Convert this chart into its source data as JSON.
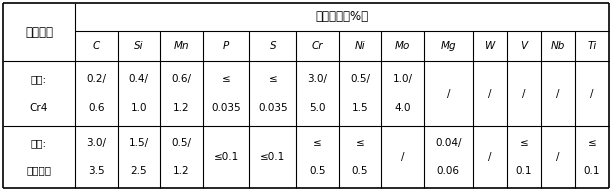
{
  "title": "化学成分（%）",
  "col1_header": "材质配对",
  "element_headers": [
    "C",
    "Si",
    "Mn",
    "P",
    "S",
    "Cr",
    "Ni",
    "Mo",
    "Mg",
    "W",
    "V",
    "Nb",
    "Ti"
  ],
  "row1_label_top": "外层:",
  "row1_label_bot": "Cr4",
  "row1_data_top": [
    "0.2/",
    "0.4/",
    "0.6/",
    "≤",
    "≤",
    "3.0/",
    "0.5/",
    "1.0/",
    "/",
    "/",
    "/",
    "/",
    "/"
  ],
  "row1_data_bot": [
    "0.6",
    "1.0",
    "1.2",
    "0.035",
    "0.035",
    "5.0",
    "1.5",
    "4.0",
    "",
    "",
    "",
    "",
    ""
  ],
  "row2_label_top": "内层:",
  "row2_label_bot": "球墨铸铁",
  "row2_data_top": [
    "3.0/",
    "1.5/",
    "0.5/",
    "≤0.1",
    "≤0.1",
    "≤",
    "≤",
    "/",
    "0.04/",
    "/",
    "≤",
    "/",
    "≤"
  ],
  "row2_data_bot": [
    "3.5",
    "2.5",
    "1.2",
    "",
    "",
    "0.5",
    "0.5",
    "",
    "0.06",
    "",
    "0.1",
    "",
    "0.1"
  ],
  "bg_color": "#ffffff",
  "text_color": "#000000",
  "font_size": 7.5,
  "header_font_size": 8.5,
  "figsize": [
    6.12,
    1.91
  ],
  "dpi": 100
}
